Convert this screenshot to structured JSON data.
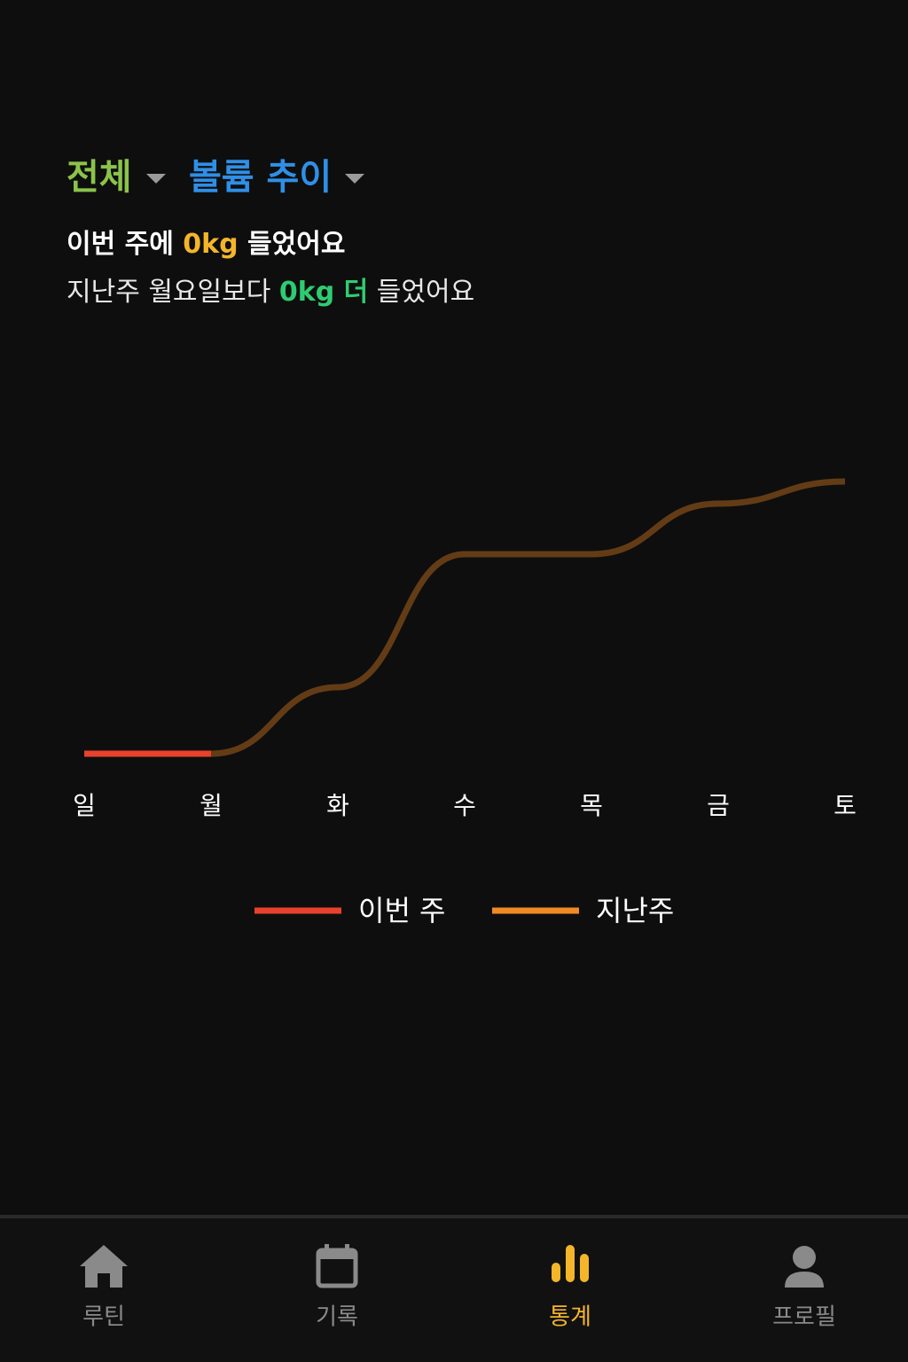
{
  "header": {
    "filter": "전체",
    "metric": "볼륨 추이",
    "summary": {
      "prefix": "이번 주에 ",
      "amount": "0kg",
      "suffix": " 들었어요"
    },
    "compare": {
      "prefix": "지난주 월요일보다 ",
      "amount": "0kg 더",
      "suffix": " 들었어요"
    }
  },
  "chart_data": {
    "type": "line",
    "categories": [
      "일",
      "월",
      "화",
      "수",
      "목",
      "금",
      "토"
    ],
    "series": [
      {
        "name": "이번 주",
        "color": "#e8412c",
        "values": [
          0,
          0,
          null,
          null,
          null,
          null,
          null
        ]
      },
      {
        "name": "지난주",
        "color": "#f08a24",
        "values": [
          0,
          0,
          75,
          225,
          225,
          282,
          307
        ]
      }
    ],
    "grid": false
  },
  "nav": {
    "items": [
      {
        "label": "루틴"
      },
      {
        "label": "기록"
      },
      {
        "label": "통계"
      },
      {
        "label": "프로필"
      }
    ],
    "active": 2
  }
}
